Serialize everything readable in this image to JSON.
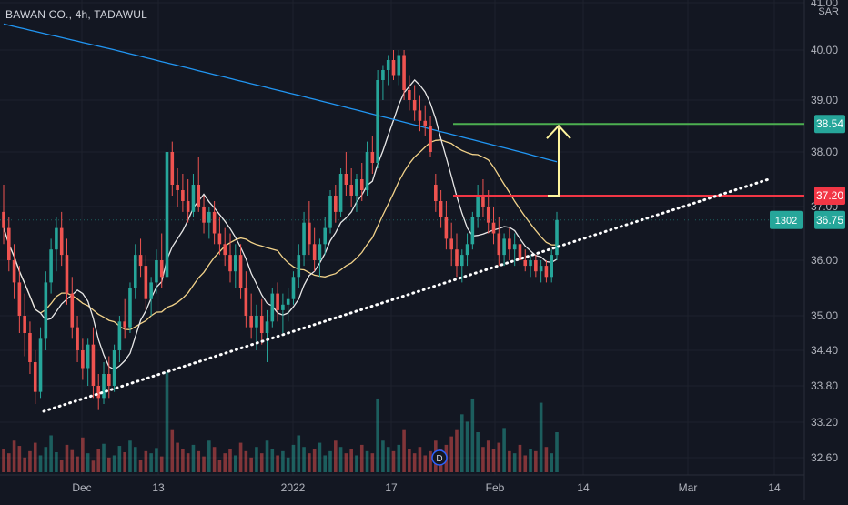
{
  "header": {
    "title": "BAWAN CO., 4h, TADAWUL",
    "currency": "SAR"
  },
  "chart_data": {
    "type": "candlestick",
    "title": "BAWAN CO., 4h, TADAWUL",
    "currency": "SAR",
    "ylim": [
      32.4,
      41.0
    ],
    "y_ticks": [
      "41.00",
      "40.00",
      "39.00",
      "38.00",
      "37.00",
      "36.00",
      "35.00",
      "34.40",
      "33.80",
      "33.20",
      "32.60"
    ],
    "x_ticks": [
      "Dec",
      "13",
      "2022",
      "17",
      "Feb",
      "14",
      "Mar",
      "14"
    ],
    "grid": true,
    "price_labels": [
      {
        "text": "38.54",
        "value": 38.54,
        "color": "#26a69a"
      },
      {
        "text": "37.20",
        "value": 37.2,
        "color": "#f23645"
      },
      {
        "text": "36.75",
        "value": 36.75,
        "color": "#26a69a",
        "prefix": "1302"
      }
    ],
    "horizontal_lines": [
      {
        "value": 38.54,
        "color": "#4caf50"
      },
      {
        "value": 37.2,
        "color": "#f23645"
      }
    ],
    "trendline": {
      "style": "dotted",
      "color": "#ffffff"
    },
    "target_arrow": {
      "from": 37.2,
      "to": 38.54,
      "color": "#fff59d"
    },
    "event_marker": "D",
    "candles": [
      [
        36.9,
        37.4,
        36.3,
        36.6
      ],
      [
        36.6,
        36.8,
        35.8,
        36.0
      ],
      [
        36.0,
        36.3,
        35.3,
        35.6
      ],
      [
        35.6,
        35.9,
        34.7,
        35.0
      ],
      [
        35.0,
        35.4,
        34.3,
        34.7
      ],
      [
        34.7,
        34.9,
        34.0,
        34.2
      ],
      [
        34.2,
        34.4,
        33.5,
        33.7
      ],
      [
        33.7,
        34.8,
        33.6,
        34.6
      ],
      [
        34.6,
        35.8,
        34.4,
        35.6
      ],
      [
        35.6,
        36.4,
        35.4,
        36.2
      ],
      [
        36.2,
        36.8,
        35.8,
        36.6
      ],
      [
        36.6,
        36.9,
        35.9,
        36.1
      ],
      [
        36.1,
        36.4,
        35.2,
        35.4
      ],
      [
        35.4,
        35.7,
        34.6,
        34.8
      ],
      [
        34.8,
        35.0,
        34.2,
        34.4
      ],
      [
        34.4,
        34.6,
        33.9,
        34.1
      ],
      [
        34.1,
        34.6,
        33.8,
        34.5
      ],
      [
        34.5,
        34.8,
        33.6,
        33.8
      ],
      [
        33.8,
        34.0,
        33.4,
        33.6
      ],
      [
        33.6,
        34.2,
        33.5,
        34.0
      ],
      [
        34.0,
        34.3,
        33.6,
        33.8
      ],
      [
        33.8,
        34.5,
        33.7,
        34.4
      ],
      [
        34.4,
        35.0,
        34.2,
        34.9
      ],
      [
        34.9,
        35.3,
        34.6,
        34.8
      ],
      [
        34.8,
        35.6,
        34.7,
        35.5
      ],
      [
        35.5,
        36.3,
        35.3,
        36.1
      ],
      [
        36.1,
        36.4,
        35.7,
        35.9
      ],
      [
        35.9,
        36.1,
        35.1,
        35.3
      ],
      [
        35.3,
        35.7,
        35.0,
        35.6
      ],
      [
        35.6,
        36.2,
        35.4,
        36.0
      ],
      [
        36.0,
        36.5,
        35.5,
        35.7
      ],
      [
        35.7,
        38.2,
        35.6,
        38.0
      ],
      [
        38.0,
        38.2,
        37.2,
        37.4
      ],
      [
        37.4,
        37.7,
        37.0,
        37.3
      ],
      [
        37.3,
        37.6,
        36.9,
        37.1
      ],
      [
        37.1,
        37.5,
        36.7,
        36.9
      ],
      [
        36.9,
        37.6,
        36.8,
        37.4
      ],
      [
        37.4,
        37.9,
        36.9,
        37.0
      ],
      [
        37.0,
        37.2,
        36.5,
        36.7
      ],
      [
        36.7,
        37.0,
        36.4,
        36.9
      ],
      [
        36.9,
        37.1,
        36.3,
        36.5
      ],
      [
        36.5,
        36.8,
        36.1,
        36.3
      ],
      [
        36.3,
        36.6,
        35.9,
        36.1
      ],
      [
        36.1,
        36.5,
        35.6,
        35.8
      ],
      [
        35.8,
        36.3,
        35.5,
        36.1
      ],
      [
        36.1,
        36.3,
        35.3,
        35.5
      ],
      [
        35.5,
        35.8,
        34.8,
        35.0
      ],
      [
        35.0,
        35.4,
        34.6,
        34.8
      ],
      [
        34.8,
        35.2,
        34.4,
        35.0
      ],
      [
        35.0,
        35.3,
        34.5,
        34.7
      ],
      [
        34.7,
        35.1,
        34.2,
        34.9
      ],
      [
        34.9,
        35.5,
        34.8,
        35.4
      ],
      [
        35.4,
        35.6,
        34.9,
        35.1
      ],
      [
        35.1,
        35.4,
        34.7,
        35.2
      ],
      [
        35.2,
        35.5,
        34.9,
        35.3
      ],
      [
        35.3,
        35.8,
        35.2,
        35.7
      ],
      [
        35.7,
        36.3,
        35.5,
        36.1
      ],
      [
        36.1,
        36.9,
        35.9,
        36.7
      ],
      [
        36.7,
        37.1,
        36.1,
        36.3
      ],
      [
        36.3,
        36.6,
        35.8,
        36.0
      ],
      [
        36.0,
        36.4,
        35.7,
        36.3
      ],
      [
        36.3,
        36.8,
        36.1,
        36.6
      ],
      [
        36.6,
        37.3,
        36.5,
        37.2
      ],
      [
        37.2,
        37.4,
        36.7,
        36.9
      ],
      [
        36.9,
        37.7,
        36.8,
        37.6
      ],
      [
        37.6,
        38.0,
        37.2,
        37.4
      ],
      [
        37.4,
        37.7,
        37.0,
        37.2
      ],
      [
        37.2,
        37.6,
        36.9,
        37.5
      ],
      [
        37.5,
        37.8,
        37.1,
        37.3
      ],
      [
        37.3,
        38.2,
        37.2,
        38.0
      ],
      [
        38.0,
        38.3,
        37.6,
        37.8
      ],
      [
        37.8,
        39.6,
        37.7,
        39.4
      ],
      [
        39.4,
        39.7,
        39.0,
        39.6
      ],
      [
        39.6,
        39.9,
        39.3,
        39.8
      ],
      [
        39.8,
        40.0,
        39.4,
        39.5
      ],
      [
        39.5,
        40.0,
        39.3,
        39.9
      ],
      [
        39.9,
        40.0,
        39.0,
        39.2
      ],
      [
        39.2,
        39.5,
        38.8,
        39.0
      ],
      [
        39.0,
        39.3,
        38.6,
        38.8
      ],
      [
        38.8,
        39.1,
        38.4,
        38.6
      ],
      [
        38.6,
        38.9,
        38.3,
        38.5
      ],
      [
        38.5,
        38.7,
        37.9,
        38.0
      ],
      [
        37.4,
        37.6,
        36.9,
        37.1
      ],
      [
        37.1,
        37.3,
        36.6,
        36.8
      ],
      [
        36.8,
        37.1,
        36.2,
        36.4
      ],
      [
        36.4,
        36.7,
        35.9,
        36.2
      ],
      [
        36.2,
        36.5,
        35.7,
        35.9
      ],
      [
        35.9,
        36.2,
        35.6,
        36.1
      ],
      [
        36.1,
        36.5,
        35.9,
        36.3
      ],
      [
        36.3,
        36.9,
        36.2,
        36.8
      ],
      [
        36.8,
        37.4,
        36.6,
        37.2
      ],
      [
        37.2,
        37.5,
        36.8,
        37.0
      ],
      [
        37.0,
        37.3,
        36.5,
        36.7
      ],
      [
        36.7,
        37.0,
        36.3,
        36.5
      ],
      [
        36.5,
        36.8,
        35.9,
        36.1
      ],
      [
        36.1,
        36.5,
        35.9,
        36.4
      ],
      [
        36.4,
        36.6,
        36.0,
        36.2
      ],
      [
        36.2,
        36.5,
        35.9,
        36.3
      ],
      [
        36.3,
        36.5,
        35.9,
        36.0
      ],
      [
        36.0,
        36.2,
        35.8,
        35.9
      ],
      [
        35.9,
        36.1,
        35.7,
        36.0
      ],
      [
        36.0,
        36.1,
        35.7,
        35.8
      ],
      [
        35.8,
        36.0,
        35.6,
        35.9
      ],
      [
        35.9,
        36.0,
        35.6,
        35.7
      ],
      [
        35.7,
        36.2,
        35.6,
        36.1
      ],
      [
        36.1,
        36.9,
        36.0,
        36.75
      ]
    ],
    "volume": [
      22,
      18,
      30,
      25,
      14,
      20,
      28,
      16,
      24,
      35,
      19,
      12,
      26,
      21,
      15,
      33,
      18,
      11,
      22,
      27,
      14,
      16,
      25,
      19,
      30,
      24,
      12,
      20,
      18,
      23,
      15,
      95,
      40,
      28,
      22,
      18,
      26,
      20,
      15,
      30,
      24,
      12,
      18,
      22,
      16,
      28,
      20,
      14,
      24,
      18,
      30,
      22,
      16,
      20,
      14,
      26,
      35,
      24,
      18,
      22,
      28,
      16,
      20,
      30,
      24,
      18,
      22,
      16,
      26,
      20,
      18,
      70,
      30,
      24,
      20,
      26,
      40,
      22,
      18,
      24,
      16,
      20,
      30,
      22,
      26,
      34,
      40,
      55,
      48,
      70,
      38,
      24,
      30,
      22,
      28,
      42,
      20,
      18,
      26,
      16,
      22,
      20,
      66,
      24,
      18,
      38
    ]
  }
}
